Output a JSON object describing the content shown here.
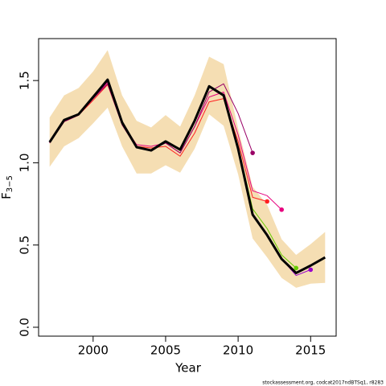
{
  "chart_data": {
    "type": "line",
    "x_label": "Year",
    "y_label": {
      "main": "F",
      "subscript": "3−5"
    },
    "footnote": "stockassessment.org, codcat2017ndBTSq1, r8283",
    "x": [
      1997,
      1998,
      1999,
      2000,
      2001,
      2002,
      2003,
      2004,
      2005,
      2006,
      2007,
      2008,
      2009,
      2010,
      2011,
      2012,
      2013,
      2014,
      2015,
      2016
    ],
    "xlim": [
      1996.24,
      2016.76
    ],
    "ylim": [
      -0.054,
      1.755
    ],
    "xticks": [
      2000,
      2005,
      2010,
      2015
    ],
    "yticks": [
      {
        "value": 0,
        "label": "0.0"
      },
      {
        "value": 0.5,
        "label": "0.5"
      },
      {
        "value": 1,
        "label": "1.0"
      },
      {
        "value": 1.5,
        "label": "1.5"
      }
    ],
    "band": {
      "color": "#f5deb3",
      "upper": [
        1.275,
        1.41,
        1.455,
        1.555,
        1.685,
        1.41,
        1.255,
        1.215,
        1.29,
        1.22,
        1.41,
        1.645,
        1.6,
        1.21,
        0.855,
        0.745,
        0.535,
        0.44,
        0.505,
        0.58
      ],
      "lower": [
        0.975,
        1.1,
        1.15,
        1.24,
        1.335,
        1.1,
        0.935,
        0.935,
        0.985,
        0.94,
        1.085,
        1.295,
        1.225,
        0.93,
        0.54,
        0.425,
        0.3,
        0.24,
        0.265,
        0.27
      ]
    },
    "series": [
      {
        "color": "#9900cc",
        "values": [
          1.125,
          1.26,
          1.295,
          1.4,
          1.505,
          1.245,
          1.095,
          1.075,
          1.13,
          1.08,
          1.255,
          1.465,
          1.41,
          1.085,
          0.685,
          0.56,
          0.415,
          0.315,
          0.35,
          null
        ]
      },
      {
        "color": "#66cc00",
        "values": [
          1.125,
          1.26,
          1.295,
          1.4,
          1.5,
          1.245,
          1.095,
          1.075,
          1.13,
          1.08,
          1.25,
          1.46,
          1.41,
          1.1,
          0.72,
          0.6,
          0.44,
          0.36,
          null,
          null
        ]
      },
      {
        "color": "#e6007e",
        "values": [
          1.12,
          1.255,
          1.29,
          1.39,
          1.49,
          1.24,
          1.11,
          1.1,
          1.12,
          1.06,
          1.22,
          1.4,
          1.43,
          1.17,
          0.83,
          0.8,
          0.715,
          null,
          null,
          null
        ]
      },
      {
        "color": "#ff2020",
        "values": [
          1.12,
          1.25,
          1.29,
          1.38,
          1.475,
          1.235,
          1.1,
          1.09,
          1.1,
          1.04,
          1.18,
          1.37,
          1.39,
          1.13,
          0.79,
          0.765,
          null,
          null,
          null,
          null
        ]
      },
      {
        "color": "#990066",
        "values": [
          1.12,
          1.25,
          1.29,
          1.39,
          1.48,
          1.23,
          1.09,
          1.08,
          1.12,
          1.06,
          1.22,
          1.43,
          1.48,
          1.3,
          1.06,
          null,
          null,
          null,
          null,
          null
        ]
      },
      {
        "color": "#000000",
        "main": true,
        "values": [
          1.125,
          1.26,
          1.295,
          1.4,
          1.505,
          1.245,
          1.095,
          1.075,
          1.13,
          1.08,
          1.255,
          1.465,
          1.41,
          1.085,
          0.685,
          0.56,
          0.415,
          0.33,
          0.375,
          0.425
        ]
      }
    ]
  }
}
